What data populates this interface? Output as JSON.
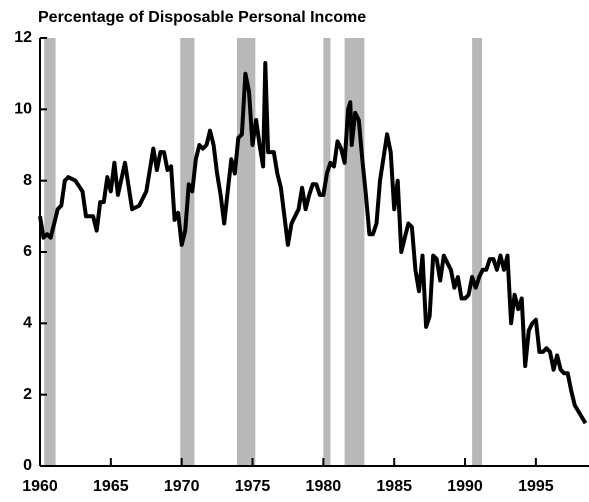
{
  "chart_data": {
    "type": "line",
    "title": "Percentage of Disposable Personal Income",
    "color": "#000000",
    "shade_color": "#b8b8b8",
    "xlim": [
      1960,
      1998.75
    ],
    "xticks": [
      1960,
      1965,
      1970,
      1975,
      1980,
      1985,
      1990,
      1995
    ],
    "ylim": [
      0,
      12
    ],
    "yticks": [
      0,
      2,
      4,
      6,
      8,
      10,
      12
    ],
    "recessions": [
      [
        1960.3,
        1961.1
      ],
      [
        1969.9,
        1970.9
      ],
      [
        1973.9,
        1975.2
      ],
      [
        1980.0,
        1980.5
      ],
      [
        1981.5,
        1982.9
      ],
      [
        1990.5,
        1991.2
      ]
    ],
    "x": [
      1960.0,
      1960.25,
      1960.5,
      1960.75,
      1961.0,
      1961.25,
      1961.5,
      1961.75,
      1962.0,
      1962.5,
      1963.0,
      1963.25,
      1963.75,
      1964.0,
      1964.25,
      1964.5,
      1964.75,
      1965.0,
      1965.25,
      1965.5,
      1966.0,
      1966.5,
      1967.0,
      1967.5,
      1968.0,
      1968.25,
      1968.5,
      1968.75,
      1969.0,
      1969.25,
      1969.5,
      1969.75,
      1970.0,
      1970.25,
      1970.5,
      1970.75,
      1971.0,
      1971.25,
      1971.5,
      1971.75,
      1972.0,
      1972.25,
      1972.5,
      1972.75,
      1973.0,
      1973.25,
      1973.5,
      1973.75,
      1974.0,
      1974.25,
      1974.5,
      1974.75,
      1975.0,
      1975.25,
      1975.5,
      1975.75,
      1975.9,
      1976.1,
      1976.5,
      1976.75,
      1977.0,
      1977.25,
      1977.5,
      1977.75,
      1978.25,
      1978.5,
      1978.75,
      1979.0,
      1979.25,
      1979.5,
      1979.75,
      1980.0,
      1980.25,
      1980.5,
      1980.75,
      1981.0,
      1981.25,
      1981.5,
      1981.75,
      1981.9,
      1982.0,
      1982.25,
      1982.5,
      1982.75,
      1983.0,
      1983.25,
      1983.5,
      1983.75,
      1984.0,
      1984.5,
      1984.75,
      1985.0,
      1985.25,
      1985.5,
      1985.75,
      1986.0,
      1986.25,
      1986.5,
      1986.75,
      1987.0,
      1987.25,
      1987.5,
      1987.75,
      1988.0,
      1988.25,
      1988.5,
      1988.75,
      1989.0,
      1989.25,
      1989.5,
      1989.75,
      1990.0,
      1990.25,
      1990.5,
      1990.75,
      1991.0,
      1991.25,
      1991.5,
      1991.75,
      1992.0,
      1992.25,
      1992.5,
      1992.75,
      1993.0,
      1993.25,
      1993.5,
      1993.75,
      1994.0,
      1994.25,
      1994.5,
      1994.75,
      1995.0,
      1995.25,
      1995.5,
      1995.75,
      1996.0,
      1996.25,
      1996.5,
      1996.75,
      1997.0,
      1997.25,
      1997.5,
      1997.75,
      1998.5
    ],
    "values": [
      7.0,
      6.4,
      6.5,
      6.4,
      6.8,
      7.2,
      7.3,
      8.0,
      8.1,
      8.0,
      7.7,
      7.0,
      7.0,
      6.6,
      7.4,
      7.4,
      8.1,
      7.7,
      8.5,
      7.6,
      8.5,
      7.2,
      7.3,
      7.7,
      8.9,
      8.3,
      8.8,
      8.8,
      8.3,
      8.4,
      6.9,
      7.1,
      6.2,
      6.6,
      7.9,
      7.7,
      8.6,
      9.0,
      8.9,
      9.0,
      9.4,
      9.0,
      8.2,
      7.6,
      6.8,
      7.7,
      8.6,
      8.2,
      9.2,
      9.3,
      11.0,
      10.5,
      9.0,
      9.7,
      9.0,
      8.4,
      11.3,
      8.8,
      8.8,
      8.2,
      7.8,
      7.0,
      6.2,
      6.8,
      7.2,
      7.8,
      7.2,
      7.6,
      7.9,
      7.9,
      7.6,
      7.6,
      8.2,
      8.5,
      8.4,
      9.1,
      8.9,
      8.5,
      10.0,
      10.2,
      9.0,
      9.9,
      9.7,
      8.6,
      7.6,
      6.5,
      6.5,
      6.8,
      8.0,
      9.3,
      8.8,
      7.2,
      8.0,
      6.0,
      6.4,
      6.8,
      6.7,
      5.5,
      4.9,
      5.9,
      3.9,
      4.2,
      5.9,
      5.8,
      5.2,
      5.9,
      5.7,
      5.5,
      5.0,
      5.3,
      4.7,
      4.7,
      4.8,
      5.3,
      5.0,
      5.3,
      5.5,
      5.5,
      5.8,
      5.8,
      5.5,
      5.9,
      5.5,
      5.9,
      4.0,
      4.8,
      4.4,
      4.7,
      2.8,
      3.8,
      4.0,
      4.1,
      3.2,
      3.2,
      3.3,
      3.2,
      2.7,
      3.1,
      2.7,
      2.6,
      2.6,
      2.1,
      1.7,
      1.2
    ]
  }
}
